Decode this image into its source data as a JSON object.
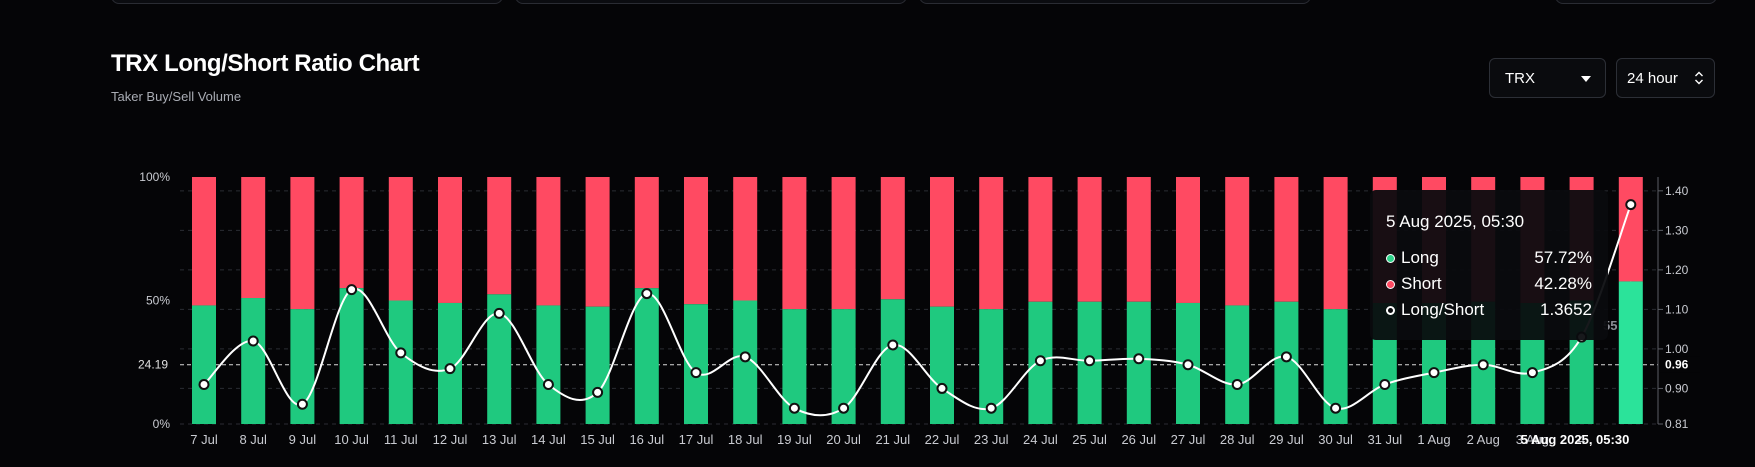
{
  "header": {
    "title": "TRX Long/Short Ratio Chart",
    "subtitle": "Taker Buy/Sell Volume"
  },
  "controls": {
    "asset": "TRX",
    "interval": "24 hour"
  },
  "tooltip": {
    "date": "5 Aug 2025, 05:30",
    "rows": [
      {
        "label": "Long",
        "value": "57.72%",
        "color": "#2dd28a"
      },
      {
        "label": "Short",
        "value": "42.28%",
        "color": "#ff4b63"
      },
      {
        "label": "Long/Short",
        "value": "1.3652",
        "color": "#ffffff"
      }
    ]
  },
  "colors": {
    "long": "#1fc97f",
    "short": "#ff4a62",
    "ratio_line": "#ffffff",
    "background": "#050507"
  },
  "chart_data": {
    "type": "bar",
    "stacked": true,
    "categories": [
      "7 Jul",
      "8 Jul",
      "9 Jul",
      "10 Jul",
      "11 Jul",
      "12 Jul",
      "13 Jul",
      "14 Jul",
      "15 Jul",
      "16 Jul",
      "17 Jul",
      "18 Jul",
      "19 Jul",
      "20 Jul",
      "21 Jul",
      "22 Jul",
      "23 Jul",
      "24 Jul",
      "25 Jul",
      "26 Jul",
      "27 Jul",
      "28 Jul",
      "29 Jul",
      "30 Jul",
      "31 Jul",
      "1 Aug",
      "2 Aug",
      "3 Aug",
      "4 Aug",
      "5 Aug 2025, 05:30"
    ],
    "x_tick_labels": [
      "7 Jul",
      "8 Jul",
      "9 Jul",
      "10 Jul",
      "11 Jul",
      "12 Jul",
      "13 Jul",
      "14 Jul",
      "15 Jul",
      "16 Jul",
      "17 Jul",
      "18 Jul",
      "19 Jul",
      "20 Jul",
      "21 Jul",
      "22 Jul",
      "23 Jul",
      "24 Jul",
      "25 Jul",
      "26 Jul",
      "27 Jul",
      "28 Jul",
      "29 Jul",
      "30 Jul",
      "31 Jul",
      "1 Aug",
      "2 Aug",
      "3 Aug",
      "4",
      "5 Aug 2025, 05:30"
    ],
    "series": [
      {
        "name": "Long",
        "values": [
          48,
          51,
          46.5,
          55,
          50,
          49,
          52.5,
          48,
          47.5,
          55,
          48.5,
          50,
          46.5,
          46.5,
          50.5,
          47.5,
          46.5,
          49.5,
          49.5,
          49.5,
          49,
          48,
          49.5,
          46.5,
          49,
          49,
          49.5,
          49,
          50,
          57.72
        ]
      },
      {
        "name": "Short",
        "values": [
          52,
          49,
          53.5,
          45,
          50,
          51,
          47.5,
          52,
          52.5,
          45,
          51.5,
          50,
          53.5,
          53.5,
          49.5,
          52.5,
          53.5,
          50.5,
          50.5,
          50.5,
          51,
          52,
          50.5,
          53.5,
          51,
          51,
          50.5,
          51,
          50,
          42.28
        ]
      },
      {
        "name": "Long/Short",
        "axis": "right",
        "values": [
          0.91,
          1.02,
          0.86,
          1.15,
          0.99,
          0.95,
          1.09,
          0.91,
          0.89,
          1.14,
          0.94,
          0.98,
          0.85,
          0.85,
          1.01,
          0.9,
          0.85,
          0.97,
          0.97,
          0.975,
          0.96,
          0.91,
          0.98,
          0.85,
          0.91,
          0.94,
          0.96,
          0.94,
          1.03,
          1.3652
        ]
      }
    ],
    "y_left": {
      "ticks": [
        "0%",
        "50%",
        "100%"
      ],
      "reference_label": "24.19",
      "range": [
        0,
        100
      ]
    },
    "y_right": {
      "ticks": [
        "0.81",
        "0.90",
        "1.00",
        "1.10",
        "1.20",
        "1.30",
        "1.40"
      ],
      "reference_label": "0.96",
      "range": [
        0.81,
        1.435
      ]
    },
    "reference_value": 0.96,
    "highlighted_index": 29,
    "partial_label": "55"
  }
}
